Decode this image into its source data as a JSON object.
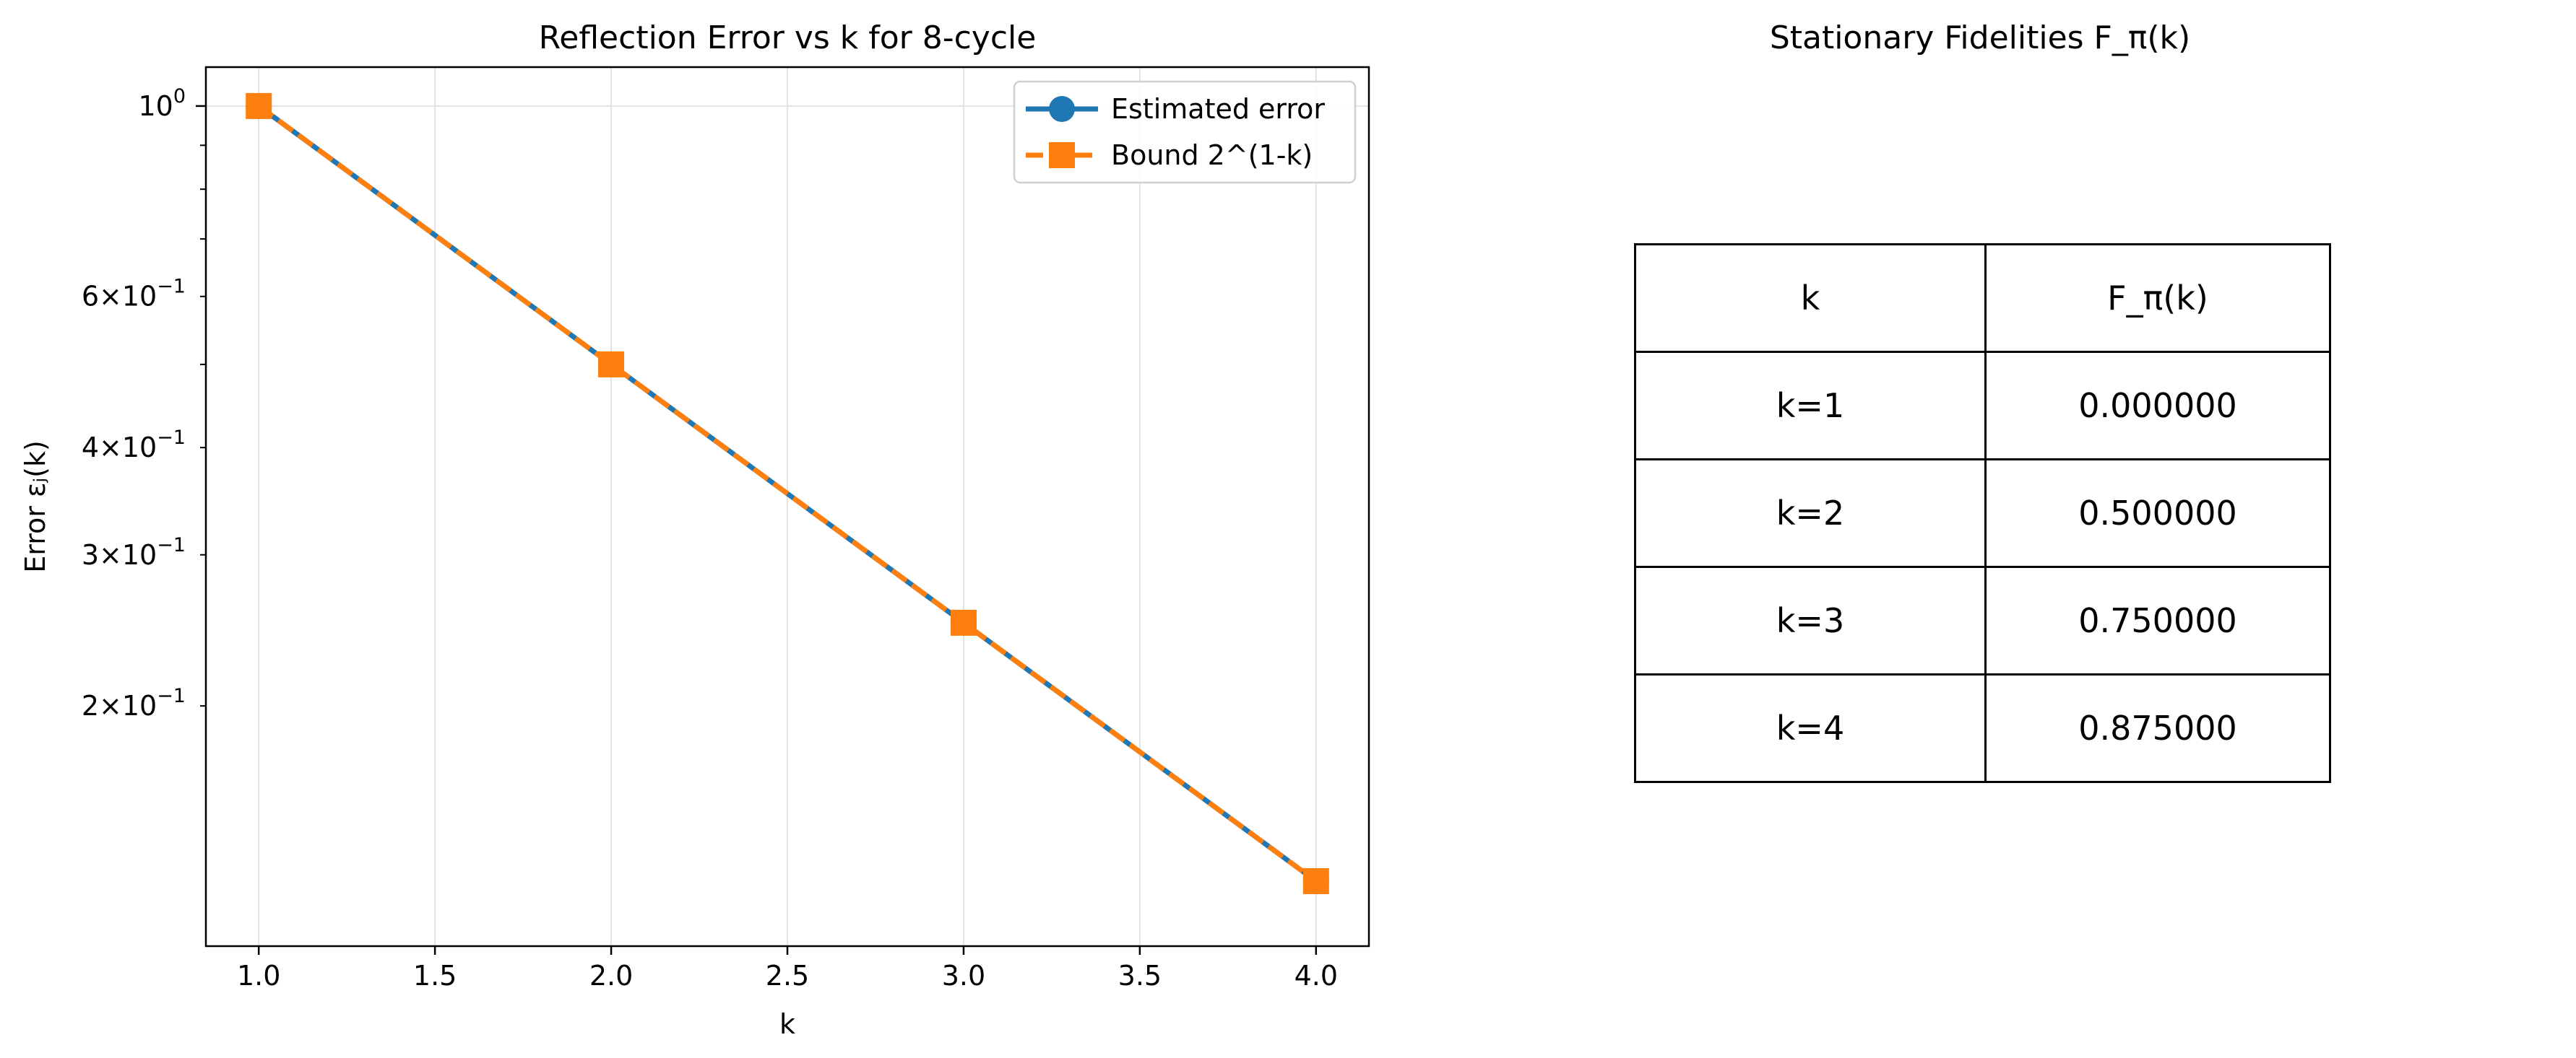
{
  "chart_data": [
    {
      "type": "line",
      "title": "Reflection Error vs k for 8-cycle",
      "xlabel": "k",
      "ylabel": "Error εⱼ(k)",
      "x": [
        1,
        2,
        3,
        4
      ],
      "xlim": [
        0.85,
        4.15
      ],
      "ylim": [
        0.105,
        1.11
      ],
      "yscale": "log",
      "x_ticks": [
        1.0,
        1.5,
        2.0,
        2.5,
        3.0,
        3.5,
        4.0
      ],
      "x_tick_labels": [
        "1.0",
        "1.5",
        "2.0",
        "2.5",
        "3.0",
        "3.5",
        "4.0"
      ],
      "y_major_ticks": [
        {
          "value": 1.0,
          "base": "10",
          "exp": "0"
        }
      ],
      "y_minor_ticks": [
        {
          "value": 0.6,
          "coef": "6",
          "base": "10",
          "exp": "−1"
        },
        {
          "value": 0.4,
          "coef": "4",
          "base": "10",
          "exp": "−1"
        },
        {
          "value": 0.3,
          "coef": "3",
          "base": "10",
          "exp": "−1"
        },
        {
          "value": 0.2,
          "coef": "2",
          "base": "10",
          "exp": "−1"
        }
      ],
      "y_unlabeled_minor_ticks": [
        0.9,
        0.8,
        0.7,
        0.5
      ],
      "grid": true,
      "legend_position": "top-right",
      "series": [
        {
          "name": "Estimated error",
          "values": [
            1.0,
            0.5,
            0.25,
            0.125
          ],
          "color": "#1f77b4",
          "marker": "circle",
          "linestyle": "solid"
        },
        {
          "name": "Bound 2^(1-k)",
          "values": [
            1.0,
            0.5,
            0.25,
            0.125
          ],
          "color": "#ff7f0e",
          "marker": "square",
          "linestyle": "dashed"
        }
      ]
    },
    {
      "type": "table",
      "title": "Stationary Fidelities F_π(k)",
      "columns": [
        "k",
        "F_π(k)"
      ],
      "rows": [
        [
          "k=1",
          "0.000000"
        ],
        [
          "k=2",
          "0.500000"
        ],
        [
          "k=3",
          "0.750000"
        ],
        [
          "k=4",
          "0.875000"
        ]
      ]
    }
  ]
}
